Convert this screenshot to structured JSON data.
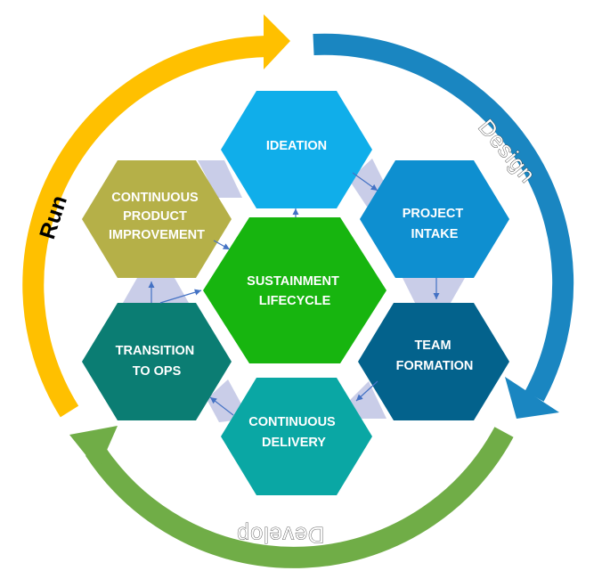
{
  "colors": {
    "ideation": "#10AEEA",
    "project_intake": "#0E8FD0",
    "team_formation": "#03628C",
    "continuous_delivery": "#0AA7A4",
    "transition_to_ops": "#0B7D73",
    "continuous_improvement": "#B5B048",
    "sustainment": "#17B50F",
    "connector": "#C9CDE8",
    "arrow_link": "#4472C4",
    "run_arc": "#FFC000",
    "design_arc": "#1A86C1",
    "develop_arc": "#70AD47"
  },
  "cycle": {
    "run": "Run",
    "design": "Design",
    "develop": "Develop"
  },
  "center": {
    "line1": "SUSTAINMENT",
    "line2": "LIFECYCLE"
  },
  "stages": {
    "ideation": {
      "line1": "IDEATION"
    },
    "project_intake": {
      "line1": "PROJECT",
      "line2": "INTAKE"
    },
    "team_formation": {
      "line1": "TEAM",
      "line2": "FORMATION"
    },
    "continuous_delivery": {
      "line1": "CONTINUOUS",
      "line2": "DELIVERY"
    },
    "transition_to_ops": {
      "line1": "TRANSITION",
      "line2": "TO OPS"
    },
    "continuous_improvement": {
      "line1": "CONTINUOUS",
      "line2": "PRODUCT",
      "line3": "IMPROVEMENT"
    }
  }
}
